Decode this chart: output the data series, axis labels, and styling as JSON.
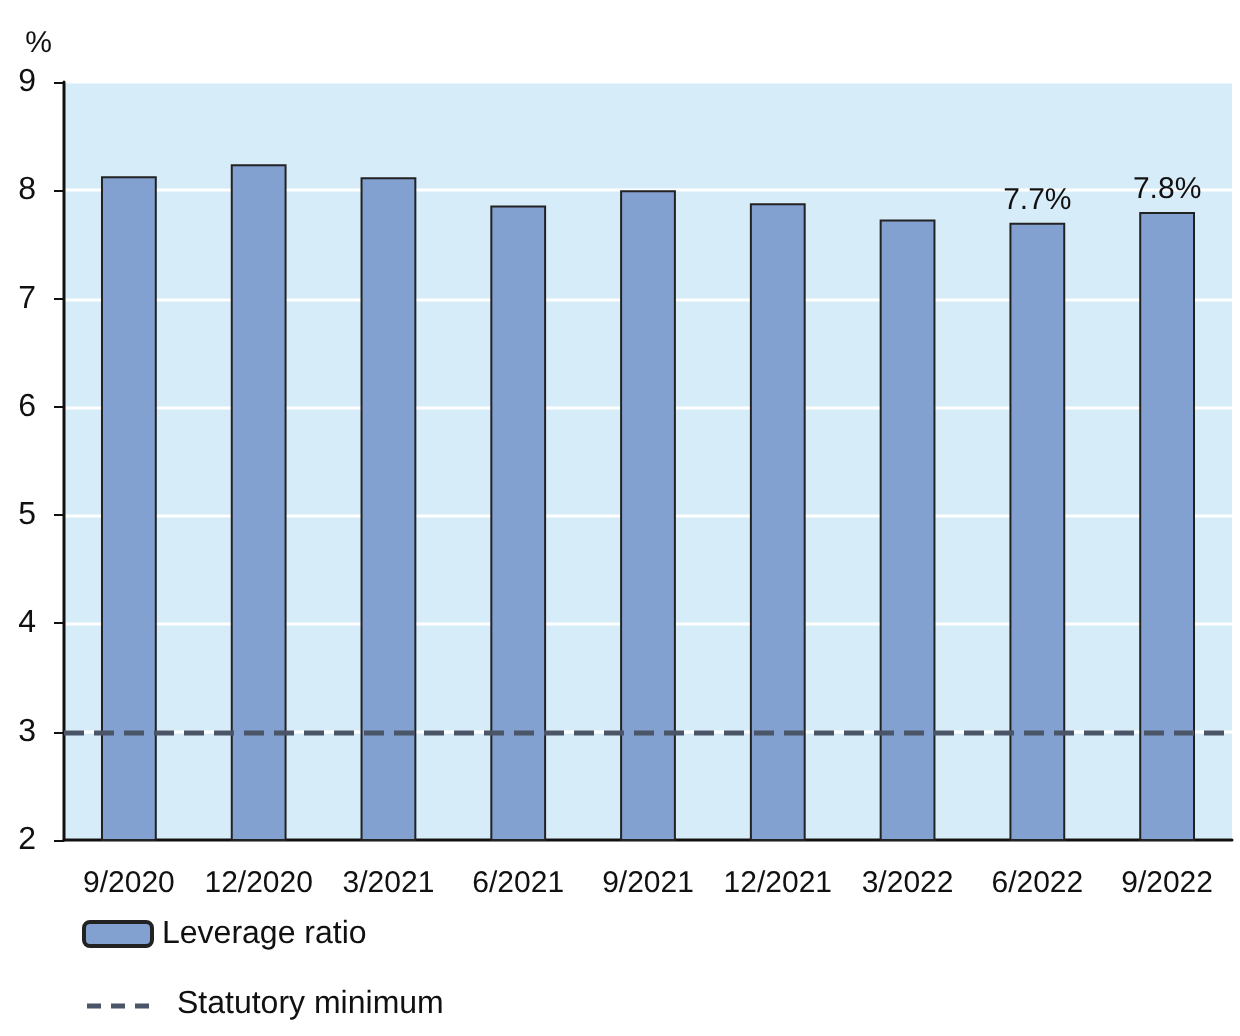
{
  "chart_data": {
    "type": "bar",
    "ylabel": "%",
    "categories": [
      "9/2020",
      "12/2020",
      "3/2021",
      "6/2021",
      "9/2021",
      "12/2021",
      "3/2022",
      "6/2022",
      "9/2022"
    ],
    "series": [
      {
        "name": "Leverage ratio",
        "color": "#82a0d0",
        "values": [
          8.13,
          8.24,
          8.12,
          7.86,
          8.0,
          7.88,
          7.73,
          7.7,
          7.8
        ],
        "value_labels": [
          null,
          null,
          null,
          null,
          null,
          null,
          null,
          "7.7%",
          "7.8%"
        ]
      }
    ],
    "ylim": [
      2,
      9
    ],
    "yticks": [
      2,
      3,
      4,
      5,
      6,
      7,
      8,
      9
    ],
    "grid": "y",
    "legend": "bottom left",
    "ref_lines": [
      {
        "axis": "y",
        "value": 3,
        "label": "Statutory minimum",
        "color": "#4a5568",
        "line_style": "dashed"
      }
    ]
  }
}
